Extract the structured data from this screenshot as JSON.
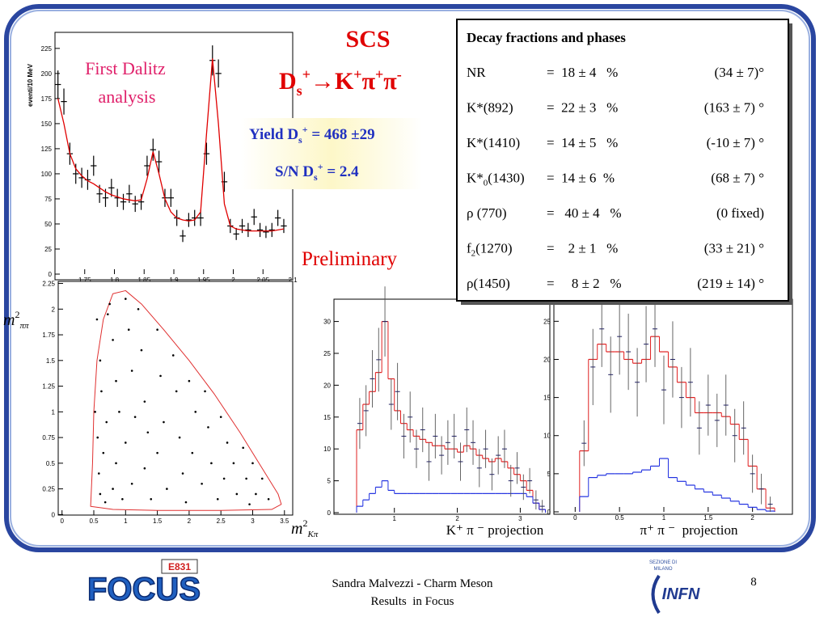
{
  "slide": {
    "title": "SCS",
    "formula": [
      "D",
      "s",
      "+",
      "→K",
      "+",
      "π",
      "+",
      "π",
      "-"
    ],
    "first": [
      "First Dalitz",
      "analysis"
    ],
    "yield": [
      "Yield D",
      "s",
      "+",
      " = 468 ±29"
    ],
    "sn": [
      "S/N D",
      "s",
      "+",
      " = 2.4"
    ],
    "preliminary": "Preliminary",
    "captions": [
      "K⁺ π ⁻ projection",
      "π⁺ π ⁻  projection"
    ],
    "footer": [
      "Sandra Malvezzi - Charm Meson",
      "Results  in Focus"
    ],
    "page": "8",
    "logos": {
      "experiment": "E831",
      "focus": "FOCUS",
      "infn": "INFN",
      "section": [
        "SEZIONE DI",
        "MILANO"
      ]
    }
  },
  "table": {
    "title": "Decay fractions and phases",
    "rows": [
      {
        "name": "NR",
        "fraction": "=  18 ± 4   %",
        "phase": "(34 ± 7)°"
      },
      {
        "name": "K*(892)",
        "fraction": "=  22 ± 3   %",
        "phase": "(163 ± 7) °"
      },
      {
        "name": "K*(1410)",
        "fraction": "=  14 ± 5   %",
        "phase": "(-10 ± 7) °"
      },
      {
        "name": "K*",
        "sub": "0",
        "tail": "(1430)",
        "fraction": "=  14 ± 6  %",
        "phase": "(68 ± 7) °"
      },
      {
        "name": "ρ (770)",
        "fraction": "=   40 ± 4   %",
        "phase": "(0 fixed)"
      },
      {
        "name": "f",
        "sub": "2",
        "tail": "(1270)",
        "fraction": "=    2 ± 1   %",
        "phase": "(33 ± 21) °"
      },
      {
        "name": "ρ(1450)",
        "fraction": "=     8 ± 2   %",
        "phase": "(219 ± 14) °"
      }
    ]
  },
  "chart_data": [
    {
      "type": "errorbar",
      "ylabel": "eventi/10 MeV",
      "x": [
        1.705,
        1.715,
        1.725,
        1.735,
        1.745,
        1.755,
        1.765,
        1.775,
        1.785,
        1.795,
        1.805,
        1.815,
        1.825,
        1.835,
        1.845,
        1.855,
        1.865,
        1.875,
        1.885,
        1.895,
        1.905,
        1.915,
        1.925,
        1.935,
        1.945,
        1.955,
        1.965,
        1.975,
        1.985,
        1.995,
        2.005,
        2.015,
        2.025,
        2.035,
        2.045,
        2.055,
        2.065,
        2.075,
        2.085
      ],
      "values": [
        189,
        172,
        120,
        100,
        96,
        94,
        108,
        80,
        76,
        86,
        76,
        72,
        80,
        70,
        72,
        108,
        124,
        112,
        76,
        76,
        56,
        38,
        54,
        56,
        56,
        120,
        213,
        200,
        92,
        48,
        40,
        48,
        44,
        57,
        44,
        42,
        44,
        56,
        48
      ],
      "errors": [
        14,
        13,
        11,
        10,
        10,
        10,
        10,
        9,
        9,
        9,
        9,
        8,
        9,
        8,
        8,
        10,
        11,
        11,
        9,
        9,
        8,
        6,
        7,
        8,
        8,
        11,
        15,
        14,
        10,
        7,
        6,
        7,
        7,
        8,
        7,
        6,
        7,
        8,
        7
      ],
      "fit": [
        175,
        150,
        120,
        105,
        98,
        93,
        90,
        86,
        82,
        79,
        77,
        75,
        74,
        73,
        74,
        95,
        122,
        100,
        75,
        62,
        56,
        54,
        53,
        54,
        62,
        140,
        215,
        150,
        70,
        48,
        45,
        44,
        43,
        43,
        43,
        43,
        43,
        44,
        45
      ],
      "color": "#000000",
      "fit_color": "#e00000",
      "xlim": [
        1.7,
        2.1
      ],
      "ylim": [
        0,
        241
      ],
      "xticks": [
        1.75,
        1.8,
        1.85,
        1.9,
        1.95,
        2,
        2.05,
        2.1
      ],
      "yticks": [
        0,
        25,
        50,
        75,
        100,
        125,
        150,
        175,
        200,
        225
      ]
    },
    {
      "type": "scatter",
      "ylabel": [
        "m",
        "2",
        "ππ"
      ],
      "xlabel": [
        "m",
        "2",
        "Kπ"
      ],
      "x": [
        0.55,
        0.6,
        0.62,
        0.7,
        0.65,
        0.58,
        0.6,
        0.75,
        0.8,
        0.85,
        0.9,
        0.85,
        0.8,
        0.95,
        1.0,
        1.05,
        1.1,
        1.0,
        1.1,
        1.2,
        1.25,
        1.3,
        1.35,
        1.3,
        1.4,
        1.5,
        1.55,
        1.6,
        1.5,
        1.65,
        1.75,
        1.8,
        1.85,
        1.9,
        1.95,
        2.0,
        2.1,
        2.05,
        2.2,
        2.25,
        2.3,
        2.35,
        2.45,
        2.5,
        2.6,
        2.55,
        2.7,
        2.75,
        2.85,
        2.9,
        3.0,
        3.05,
        3.15,
        3.25,
        0.52,
        0.56,
        0.72,
        1.15,
        0.68,
        2.95
      ],
      "y": [
        1.9,
        1.5,
        1.2,
        0.9,
        0.6,
        0.4,
        0.2,
        2.05,
        1.7,
        1.3,
        1.0,
        0.5,
        0.25,
        0.15,
        2.1,
        1.8,
        1.4,
        0.7,
        0.3,
        2.0,
        1.6,
        1.1,
        0.8,
        0.45,
        0.15,
        1.8,
        1.35,
        0.9,
        0.6,
        0.25,
        1.55,
        1.2,
        0.75,
        0.4,
        0.12,
        1.3,
        1.0,
        0.6,
        0.3,
        1.2,
        0.85,
        0.5,
        0.15,
        0.95,
        0.7,
        0.35,
        0.5,
        0.2,
        0.65,
        0.35,
        0.5,
        0.2,
        0.35,
        0.15,
        1.0,
        0.75,
        1.95,
        0.95,
        0.12,
        0.1
      ],
      "boundary": {
        "x": [
          0.45,
          0.48,
          0.5,
          0.55,
          0.65,
          0.8,
          1.0,
          1.25,
          1.6,
          2.0,
          2.4,
          2.8,
          3.1,
          3.4,
          3.45,
          3.3,
          2.5,
          1.5,
          0.8
        ],
        "y": [
          0.08,
          0.5,
          1.0,
          1.5,
          1.9,
          2.15,
          2.18,
          2.05,
          1.8,
          1.5,
          1.17,
          0.8,
          0.5,
          0.2,
          0.1,
          0.05,
          0.04,
          0.04,
          0.05
        ]
      },
      "color": "#000000",
      "boundary_color": "#e03030",
      "xlim": [
        -0.06,
        3.63
      ],
      "ylim": [
        -0.005,
        2.27
      ],
      "xticks": [
        0,
        0.5,
        1,
        1.5,
        2,
        2.5,
        3,
        3.5
      ],
      "yticks": [
        0,
        0.25,
        0.5,
        0.75,
        1,
        1.25,
        1.5,
        1.75,
        2,
        2.25
      ]
    },
    {
      "type": "histogram",
      "bins": [
        0.4,
        0.5,
        0.6,
        0.7,
        0.8,
        0.9,
        1.0,
        1.1,
        1.2,
        1.3,
        1.4,
        1.5,
        1.6,
        1.7,
        1.8,
        1.9,
        2.0,
        2.1,
        2.2,
        2.3,
        2.4,
        2.5,
        2.6,
        2.7,
        2.8,
        2.9,
        3.0,
        3.1,
        3.2,
        3.3,
        3.4
      ],
      "series": [
        {
          "color": "#e02020",
          "values": [
            13,
            17,
            19,
            22,
            30,
            21,
            16,
            14,
            13,
            12,
            11.5,
            11,
            10.5,
            10.5,
            10,
            10,
            9.5,
            10.5,
            10,
            9,
            8.5,
            8,
            8.5,
            8,
            7,
            6,
            5,
            3.5,
            1.5,
            0.5
          ]
        },
        {
          "color": "#2030e0",
          "values": [
            1,
            2,
            3,
            4,
            5,
            3.5,
            3,
            3,
            3,
            3,
            3,
            3,
            3,
            3,
            3,
            3,
            3,
            3,
            3,
            3,
            3,
            3,
            3,
            3,
            3,
            3,
            3,
            2.5,
            1.5,
            0.5
          ]
        }
      ],
      "points": {
        "color": "#202060",
        "values": [
          14,
          16,
          21,
          24,
          30,
          17,
          19,
          12,
          15,
          10,
          13,
          8,
          12,
          9,
          11,
          12,
          8,
          13,
          11,
          7,
          10,
          6,
          9,
          10,
          5,
          7,
          4,
          5,
          2,
          1
        ],
        "errors": [
          4,
          4,
          4.5,
          5,
          5.5,
          4,
          4.5,
          3.5,
          4,
          3,
          3.5,
          3,
          3.5,
          3,
          3.5,
          3.5,
          3,
          3.5,
          3.5,
          3,
          3,
          2.5,
          3,
          3,
          2.5,
          2.5,
          2,
          2,
          1.5,
          1
        ]
      },
      "xlim": [
        0.04,
        3.47
      ],
      "ylim": [
        0,
        33.5
      ],
      "xticks": [
        1,
        2,
        3
      ],
      "yticks": [
        0,
        5,
        10,
        15,
        20,
        25,
        30
      ]
    },
    {
      "type": "histogram",
      "bins": [
        0.05,
        0.15,
        0.25,
        0.35,
        0.45,
        0.55,
        0.65,
        0.75,
        0.85,
        0.95,
        1.05,
        1.15,
        1.25,
        1.35,
        1.45,
        1.55,
        1.65,
        1.75,
        1.85,
        1.95,
        2.05,
        2.15,
        2.25
      ],
      "series": [
        {
          "color": "#e02020",
          "values": [
            8,
            20,
            22,
            21,
            21,
            20,
            19.5,
            20,
            23,
            21,
            19,
            17,
            15,
            13,
            13,
            13,
            12.5,
            11.5,
            9.5,
            6,
            3,
            0.5
          ]
        },
        {
          "color": "#2030e0",
          "values": [
            2,
            4.5,
            4.8,
            5,
            5,
            5,
            5.2,
            5.5,
            6,
            7,
            4.5,
            4,
            3.5,
            3,
            2.6,
            2.2,
            1.8,
            1.4,
            1,
            0.6,
            0.3,
            0.1
          ]
        }
      ],
      "points": {
        "color": "#202060",
        "values": [
          9,
          19,
          24,
          18,
          23,
          21,
          17,
          22,
          24,
          16,
          20,
          15,
          17,
          11,
          14,
          12,
          14,
          10,
          11,
          5,
          3,
          1
        ],
        "errors": [
          3,
          5,
          5,
          5,
          5,
          5,
          4.5,
          5,
          5,
          4.5,
          5,
          4,
          4.5,
          3.5,
          4,
          3.5,
          4,
          3.5,
          3.5,
          2.5,
          2,
          1
        ]
      },
      "xlim": [
        -0.24,
        2.45
      ],
      "ylim": [
        0,
        27.9
      ],
      "xticks": [
        0,
        0.5,
        1,
        1.5,
        2
      ],
      "yticks": [
        0,
        5,
        10,
        15,
        20,
        25
      ]
    }
  ]
}
